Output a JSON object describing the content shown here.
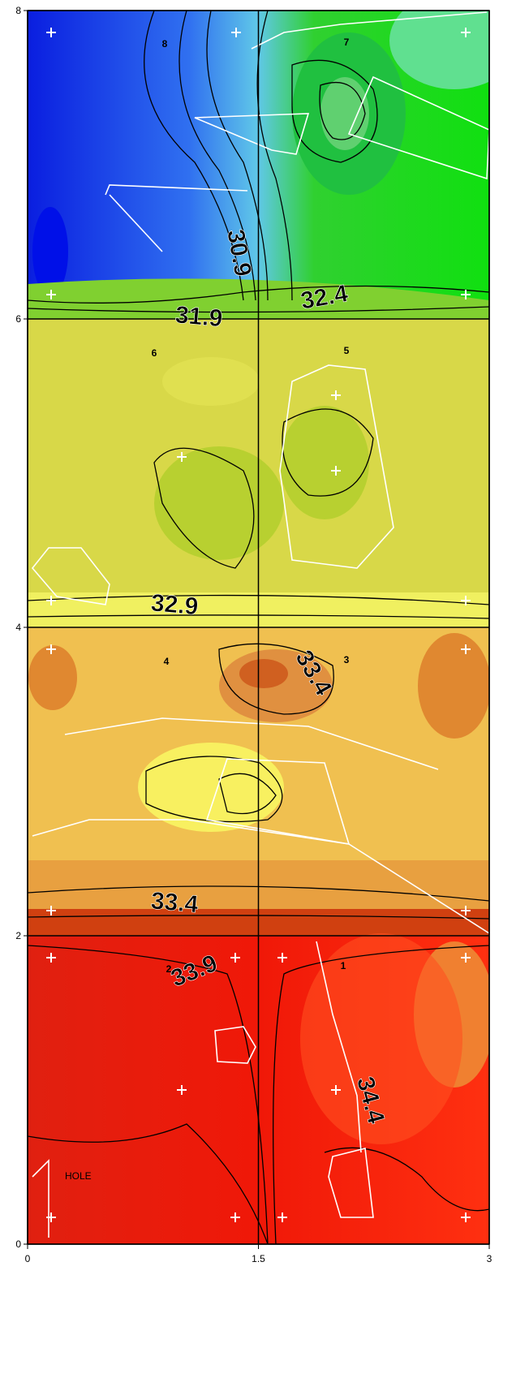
{
  "chart_data": {
    "type": "contour",
    "xlim": [
      0,
      3
    ],
    "ylim": [
      0,
      8
    ],
    "xticks": [
      0,
      1.5,
      3
    ],
    "yticks": [
      0,
      2,
      4,
      6,
      8
    ],
    "grid": true,
    "contour_labels": [
      30.9,
      31.9,
      32.4,
      32.9,
      33.4,
      33.4,
      33.9,
      34.4
    ],
    "zones": [
      "1",
      "2",
      "3",
      "4",
      "5",
      "6",
      "7",
      "8"
    ],
    "annotation": "HOLE"
  }
}
